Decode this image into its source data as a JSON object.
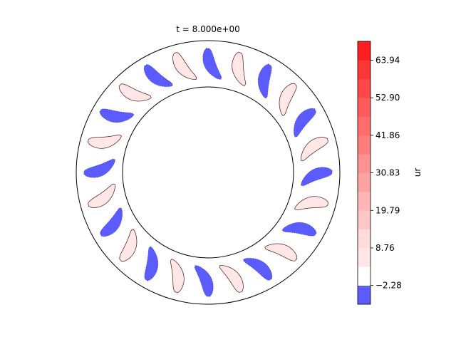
{
  "chart_data": {
    "type": "contour",
    "title": "t = 8.000e+00",
    "colorbar": {
      "label": "ur",
      "ticks": [
        -2.28,
        8.76,
        19.79,
        30.83,
        41.86,
        52.9,
        63.94
      ],
      "tick_labels": [
        "−2.28",
        "8.76",
        "19.79",
        "30.83",
        "41.86",
        "52.90",
        "63.94"
      ],
      "range": [
        -7.8,
        69.5
      ],
      "levels": [
        {
          "lo": -7.8,
          "hi": -2.28,
          "color": "#5b5bff"
        },
        {
          "lo": -2.28,
          "hi": 3.24,
          "color": "#ffffff"
        },
        {
          "lo": 3.24,
          "hi": 8.76,
          "color": "#ffe7e7"
        },
        {
          "lo": 8.76,
          "hi": 14.28,
          "color": "#ffdbdb"
        },
        {
          "lo": 14.28,
          "hi": 19.79,
          "color": "#ffc6c6"
        },
        {
          "lo": 19.79,
          "hi": 25.31,
          "color": "#ffb6b6"
        },
        {
          "lo": 25.31,
          "hi": 30.83,
          "color": "#ffa2a2"
        },
        {
          "lo": 30.83,
          "hi": 36.35,
          "color": "#ff9191"
        },
        {
          "lo": 36.35,
          "hi": 41.86,
          "color": "#ff7d7d"
        },
        {
          "lo": 41.86,
          "hi": 47.38,
          "color": "#ff6c6c"
        },
        {
          "lo": 47.38,
          "hi": 52.9,
          "color": "#ff5a5a"
        },
        {
          "lo": 52.9,
          "hi": 58.42,
          "color": "#ff4747"
        },
        {
          "lo": 58.42,
          "hi": 63.94,
          "color": "#ff3636"
        },
        {
          "lo": 63.94,
          "hi": 69.5,
          "color": "#ff1e1e"
        }
      ]
    },
    "annulus": {
      "inner_radius": 0.65,
      "outer_radius": 1.0
    },
    "blades": {
      "count": 24,
      "negative_color": "#5b5bff",
      "positive_color": "#ffe7e7",
      "pattern": [
        "negative",
        "positive"
      ]
    },
    "grid": false,
    "axes_visible": false
  }
}
